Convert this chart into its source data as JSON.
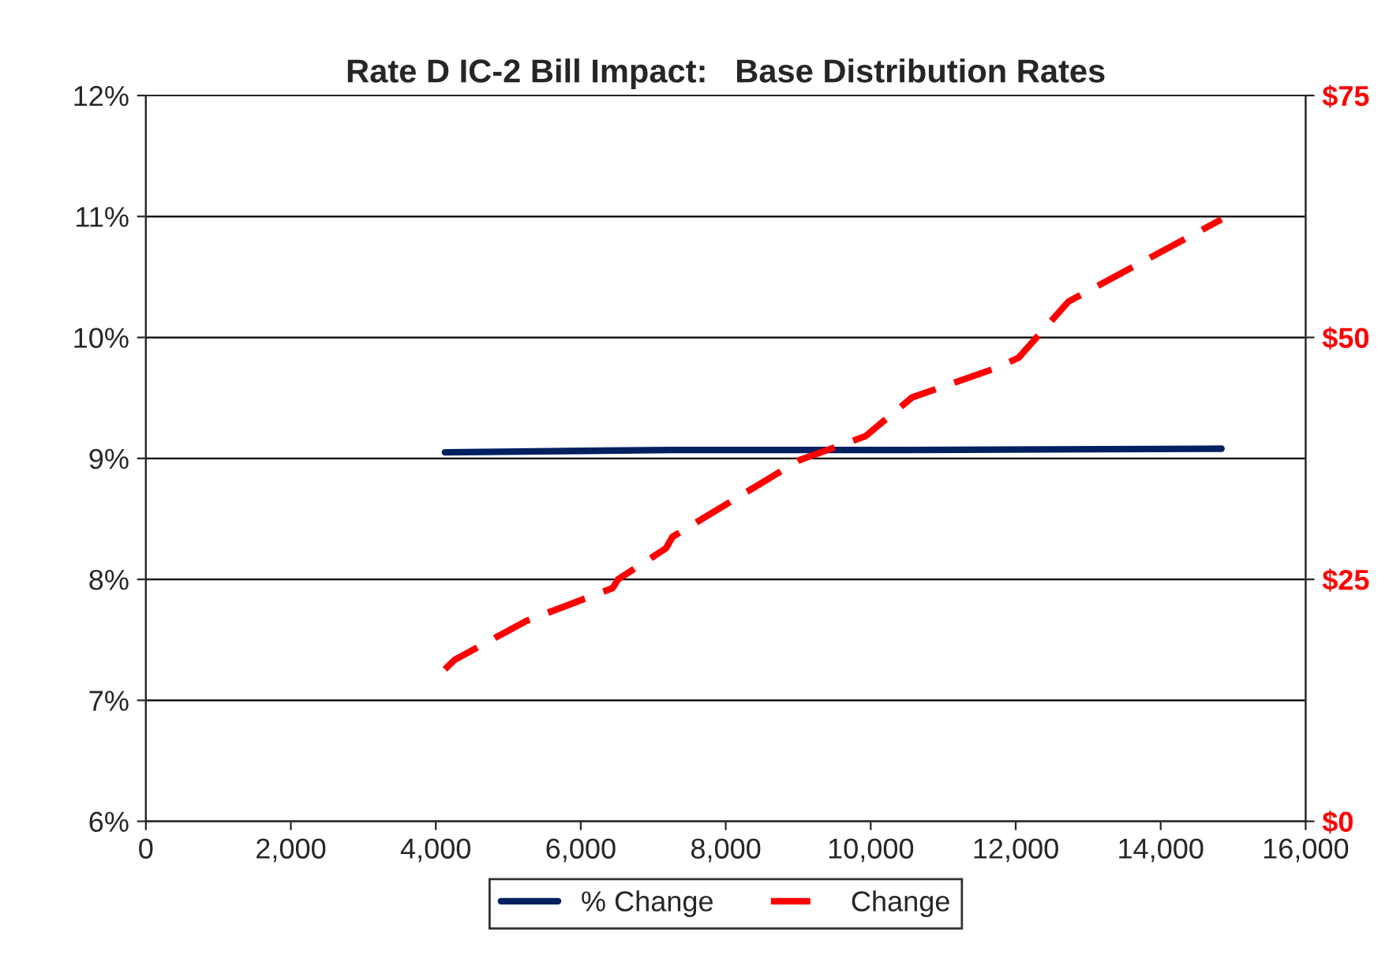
{
  "chart_data": {
    "type": "line",
    "title": "Rate D IC-2 Bill Impact:   Base Distribution Rates",
    "series": [
      {
        "name": "% Change",
        "color": "#002060",
        "line_style": "solid",
        "x": [
          4126,
          7266,
          10571,
          14839
        ],
        "values": [
          9.05,
          9.07,
          9.07,
          9.08
        ]
      },
      {
        "name": "Change",
        "color": "#ff0000",
        "line_style": "dashed",
        "axis": "y2",
        "x": [
          4126,
          4263,
          5247,
          6440,
          6514,
          7174,
          7266,
          9010,
          9928,
          10571,
          11718,
          12040,
          12727,
          14839
        ],
        "values": [
          15.7,
          16.7,
          20.7,
          24.1,
          25.0,
          28.2,
          29.4,
          37.3,
          39.8,
          43.8,
          46.8,
          47.9,
          53.7,
          62.2
        ]
      }
    ],
    "xlim": [
      0,
      16000
    ],
    "xticks": [
      0,
      {
        "value": 2000,
        "label": "2,000"
      },
      {
        "value": 4000,
        "label": "4,000"
      },
      {
        "value": 6000,
        "label": "6,000"
      },
      {
        "value": 8000,
        "label": "8,000"
      },
      {
        "value": 10000,
        "label": "10,000"
      },
      {
        "value": 12000,
        "label": "12,000"
      },
      {
        "value": 14000,
        "label": "14,000"
      },
      {
        "value": 16000,
        "label": "16,000"
      }
    ],
    "ylim": [
      6,
      12
    ],
    "yticks": [
      {
        "value": 6,
        "label": "6%"
      },
      {
        "value": 7,
        "label": "7%"
      },
      {
        "value": 8,
        "label": "8%"
      },
      {
        "value": 9,
        "label": "9%"
      },
      {
        "value": 10,
        "label": "10%"
      },
      {
        "value": 11,
        "label": "11%"
      },
      {
        "value": 12,
        "label": "12%"
      }
    ],
    "y2lim": [
      0,
      75
    ],
    "y2ticks": [
      {
        "value": 0,
        "label": "$0"
      },
      {
        "value": 25,
        "label": "$25"
      },
      {
        "value": 50,
        "label": "$50"
      },
      {
        "value": 75,
        "label": "$75"
      }
    ],
    "grid": "y",
    "legend": "bottom",
    "marker": "none"
  }
}
